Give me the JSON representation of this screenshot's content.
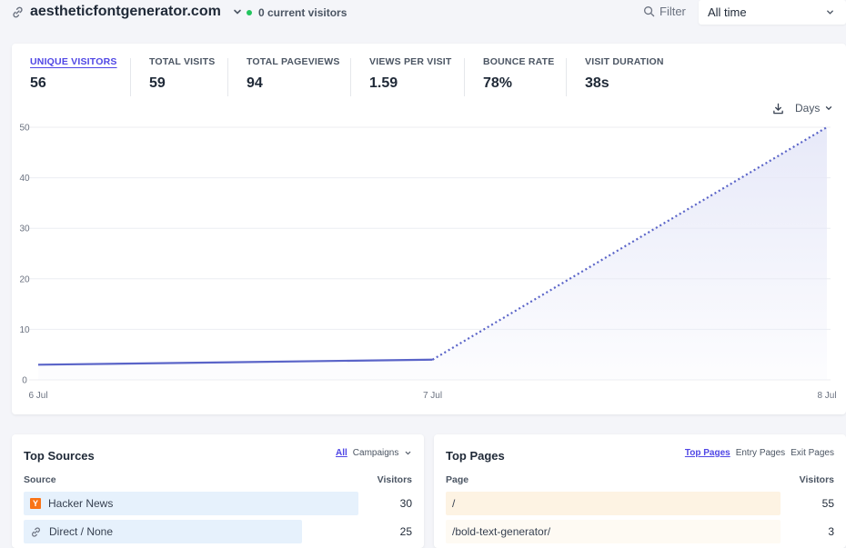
{
  "header": {
    "site": "aestheticfontgenerator.com",
    "current_visitors": "0 current visitors",
    "filter_label": "Filter",
    "time_range": "All time"
  },
  "stats": [
    {
      "label": "UNIQUE VISITORS",
      "value": "56"
    },
    {
      "label": "TOTAL VISITS",
      "value": "59"
    },
    {
      "label": "TOTAL PAGEVIEWS",
      "value": "94"
    },
    {
      "label": "VIEWS PER VISIT",
      "value": "1.59"
    },
    {
      "label": "BOUNCE RATE",
      "value": "78%"
    },
    {
      "label": "VISIT DURATION",
      "value": "38s"
    }
  ],
  "chart_controls": {
    "interval": "Days"
  },
  "chart_data": {
    "type": "line",
    "x": [
      "6 Jul",
      "7 Jul",
      "8 Jul"
    ],
    "y": [
      3,
      4,
      50
    ],
    "ylim": [
      0,
      50
    ],
    "yticks": [
      0,
      10,
      20,
      30,
      40,
      50
    ],
    "grid": true,
    "dotted_from_index": 1,
    "colors": {
      "line": "#5a64c8",
      "fill": "#e6e8f8",
      "grid": "#eceef2"
    }
  },
  "top_sources": {
    "title": "Top Sources",
    "tabs": [
      "All",
      "Campaigns"
    ],
    "col_source": "Source",
    "col_visitors": "Visitors",
    "rows": [
      {
        "label": "Hacker News",
        "icon": "hacker-news-icon",
        "value": "30"
      },
      {
        "label": "Direct / None",
        "icon": "link-icon",
        "value": "25"
      }
    ]
  },
  "top_pages": {
    "title": "Top Pages",
    "tabs": [
      "Top Pages",
      "Entry Pages",
      "Exit Pages"
    ],
    "col_page": "Page",
    "col_visitors": "Visitors",
    "rows": [
      {
        "label": "/",
        "value": "55"
      },
      {
        "label": "/bold-text-generator/",
        "value": "3"
      }
    ]
  }
}
